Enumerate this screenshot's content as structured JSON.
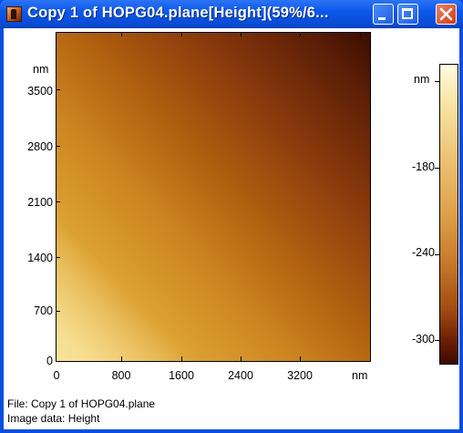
{
  "window": {
    "title": "Copy 1 of HOPG04.plane[Height](59%/6...",
    "icon": "app-icon",
    "controls": [
      "minimize-icon",
      "maximize-icon",
      "close-icon"
    ]
  },
  "image_axes": {
    "y_unit": "nm",
    "y_ticks": [
      "3500",
      "2800",
      "2100",
      "1400",
      "700",
      "0"
    ],
    "x_unit": "nm",
    "x_ticks": [
      "0",
      "800",
      "1600",
      "2400",
      "3200"
    ]
  },
  "colorbar": {
    "unit": "nm",
    "ticks": [
      "-180",
      "-240",
      "-300"
    ]
  },
  "footer": {
    "file_line": "File: Copy 1 of HOPG04.plane",
    "data_line": "Image data: Height"
  },
  "colors": {
    "titlebar": "#0a4ee0",
    "close_button": "#cf3d1b",
    "map_dark": "#3a0d02",
    "map_light": "#f8e39a"
  }
}
